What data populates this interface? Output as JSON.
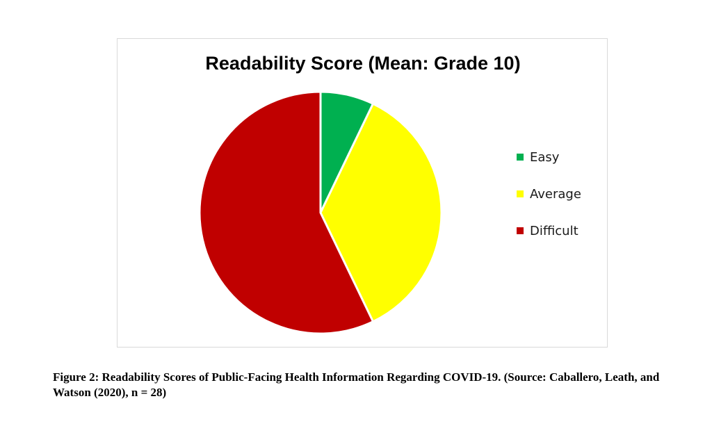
{
  "chart_data": {
    "type": "pie",
    "title": "Readability Score (Mean: Grade 10)",
    "categories": [
      "Easy",
      "Average",
      "Difficult"
    ],
    "values": [
      2,
      10,
      16
    ],
    "colors": [
      "#00b050",
      "#ffff00",
      "#c00000"
    ],
    "legend_position": "right"
  },
  "caption": {
    "text": "Figure 2: Readability Scores of Public-Facing Health Information Regarding COVID-19. (Source: Caballero, Leath, and Watson (2020), n = 28)"
  }
}
